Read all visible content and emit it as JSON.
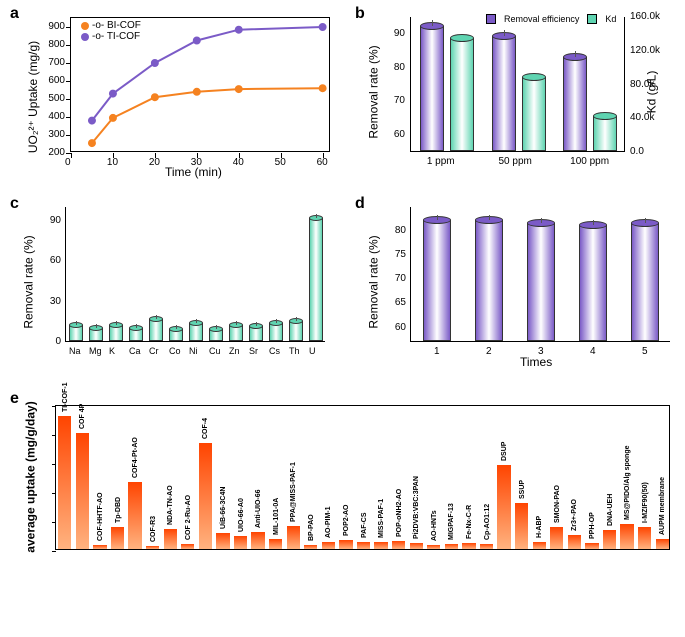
{
  "colors": {
    "orange": "#f58220",
    "purple": "#7b5bc7",
    "teal": "#5fd4b1",
    "bar_orange1": "#ff4400",
    "bar_orange2": "#ffb380"
  },
  "panelA": {
    "label": "a",
    "y_title": "UO₂²⁺ Uptake (mg/g)",
    "x_title": "Time (min)",
    "y_ticks": [
      200,
      300,
      400,
      500,
      600,
      700,
      800,
      900
    ],
    "x_ticks": [
      0,
      10,
      20,
      30,
      40,
      50,
      60
    ],
    "ylim": [
      200,
      950
    ],
    "xlim": [
      0,
      62
    ],
    "legend": [
      "BI-COF",
      "TI-COF"
    ],
    "series_bi": {
      "x": [
        5,
        10,
        20,
        30,
        40,
        60
      ],
      "y": [
        255,
        395,
        510,
        540,
        555,
        560
      ]
    },
    "series_ti": {
      "x": [
        5,
        10,
        20,
        30,
        40,
        60
      ],
      "y": [
        380,
        530,
        700,
        825,
        885,
        900
      ]
    }
  },
  "panelB": {
    "label": "b",
    "y_left": "Removal rate (%)",
    "y_right": "Kd (g/L)",
    "x_cats": [
      "1 ppm",
      "50 ppm",
      "100 ppm"
    ],
    "y_left_ticks": [
      60,
      70,
      80,
      90
    ],
    "y_right_ticks": [
      "0.0",
      "40.0k",
      "80.0k",
      "120.0k",
      "160.0k"
    ],
    "legend": [
      "Removal efficiency",
      "Kd"
    ],
    "removal": [
      92,
      89,
      83
    ],
    "kd_norm": [
      0.838,
      0.55,
      0.26
    ]
  },
  "panelC": {
    "label": "c",
    "y_title": "Removal rate (%)",
    "y_ticks": [
      0,
      30,
      60,
      90
    ],
    "cats": [
      "Na",
      "Mg",
      "K",
      "Ca",
      "Cr",
      "Co",
      "Ni",
      "Cu",
      "Zn",
      "Sr",
      "Cs",
      "Th",
      "U"
    ],
    "values": [
      11.5,
      9.5,
      12,
      10,
      16,
      9,
      13,
      9,
      12,
      11,
      13,
      15,
      91
    ]
  },
  "panelD": {
    "label": "d",
    "y_title": "Removal rate (%)",
    "x_title": "Times",
    "y_ticks": [
      60,
      65,
      70,
      75,
      80
    ],
    "x_cats": [
      "1",
      "2",
      "3",
      "4",
      "5"
    ],
    "values": [
      82,
      82,
      81.5,
      81,
      81.5
    ]
  },
  "panelE": {
    "label": "e",
    "y_title": "average uptake (mg/g/day)",
    "cats": [
      "TI-COF-1",
      "COF 4P",
      "COF-HHTF-AO",
      "Tp-DBD",
      "COF4-Pt-AO",
      "COF-R3",
      "NDA-TN-AO",
      "COF 2-Ru-AO",
      "COF-4",
      "UiB-66-3C4N",
      "UIO-66-A0",
      "Anti-UIO-66",
      "MIL-101-0A",
      "PPA@MISS-PAF-1",
      "BP-PAO",
      "AO-PIM-1",
      "POP2-AO",
      "PAF-CS",
      "MISS-PAF-1",
      "POP-oNH2-AO",
      "Pi2DVB:VBC:3PAN",
      "AO-HNTs",
      "MIGPAF-13",
      "Fe-Nx-C-R",
      "Cp-AO1:12",
      "DSUP",
      "SSUP",
      "H-ABP",
      "SMON-PAO",
      "Zr3+-PAO",
      "PPH-OP",
      "DNA-UEH",
      "MS@PIDO/Alg sponge",
      "I-MZIF90(50)",
      "AUPM membrane"
    ],
    "values": [
      9.15,
      8.0,
      0.3,
      1.5,
      4.6,
      0.2,
      1.4,
      0.35,
      7.3,
      1.1,
      0.9,
      1.2,
      0.7,
      1.6,
      0.3,
      0.5,
      0.6,
      0.45,
      0.45,
      0.55,
      0.4,
      0.3,
      0.35,
      0.4,
      0.35,
      5.8,
      3.2,
      0.45,
      1.5,
      0.95,
      0.4,
      1.3,
      1.7,
      1.5,
      0.7
    ]
  }
}
